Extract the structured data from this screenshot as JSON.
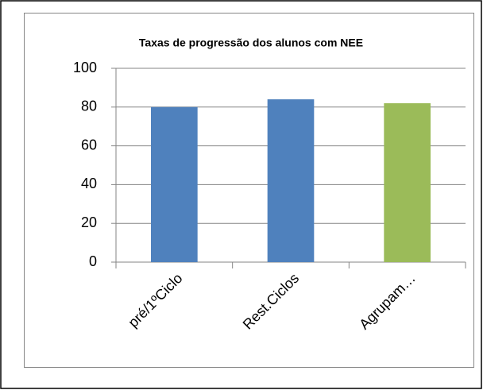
{
  "chart_data": {
    "type": "bar",
    "title": "Taxas de progressão dos alunos com NEE",
    "categories": [
      "pré/1ºCiclo",
      "Rest.Ciclos",
      "Agrupam…"
    ],
    "values": [
      80,
      84,
      82
    ],
    "colors": [
      "#4f81bd",
      "#4f81bd",
      "#9bbb59"
    ],
    "ylim": [
      0,
      100
    ],
    "yticks": [
      0,
      20,
      40,
      60,
      80,
      100
    ],
    "grid": true
  }
}
